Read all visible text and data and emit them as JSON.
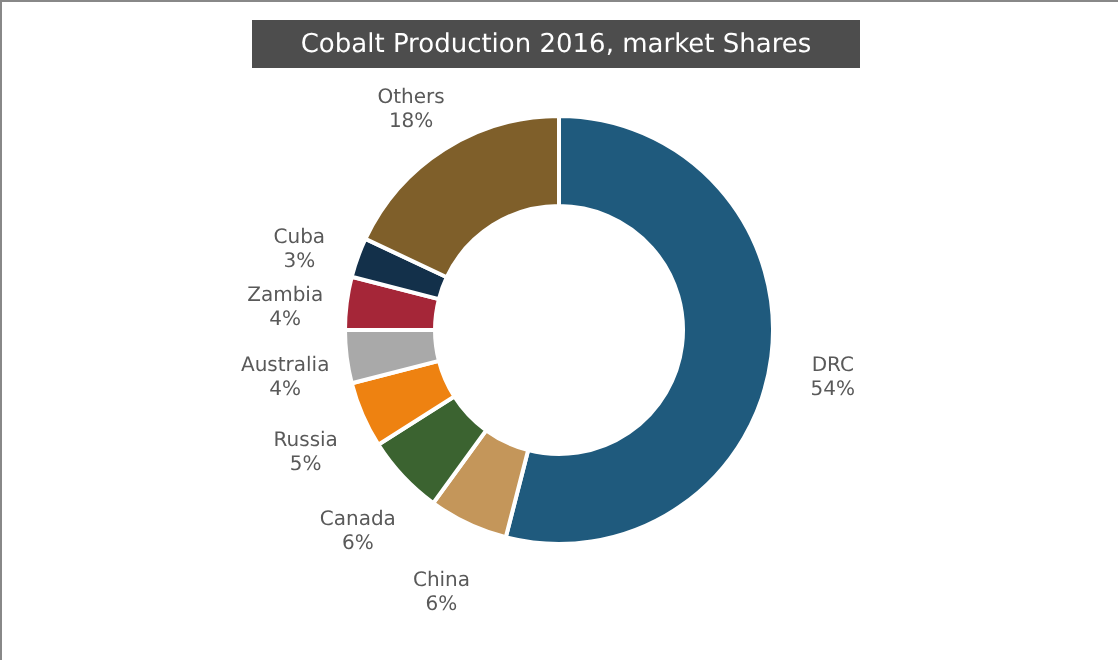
{
  "chart_data": {
    "type": "donut",
    "title": "Cobalt Production 2016, market Shares",
    "categories": [
      "DRC",
      "China",
      "Canada",
      "Russia",
      "Australia",
      "Zambia",
      "Cuba",
      "Others"
    ],
    "values": [
      54,
      6,
      6,
      5,
      4,
      4,
      3,
      18
    ],
    "value_labels": [
      "54%",
      "6%",
      "6%",
      "5%",
      "4%",
      "4%",
      "3%",
      "18%"
    ],
    "colors": [
      "#1f5a7d",
      "#c4965a",
      "#3b6330",
      "#ee8211",
      "#a9a9a9",
      "#a52638",
      "#13304a",
      "#7f5f2a"
    ],
    "legend": false
  }
}
